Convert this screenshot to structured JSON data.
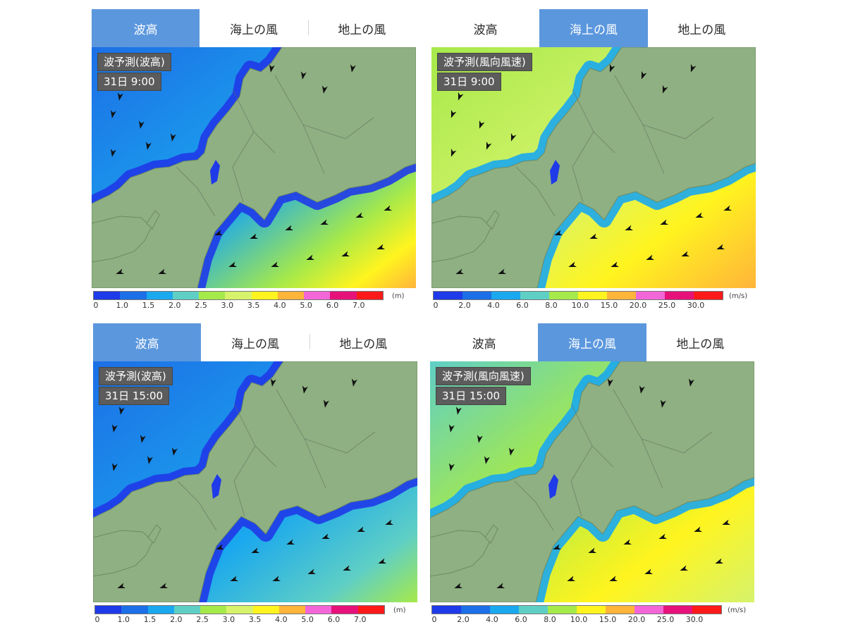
{
  "panels": [
    {
      "tabs": [
        {
          "label": "波高",
          "active": true
        },
        {
          "label": "海上の風",
          "active": false
        },
        {
          "label": "地上の風",
          "active": false
        }
      ],
      "title": "波予測(波高)",
      "time": "31日 9:00",
      "legend": {
        "colors": [
          "#1f3ae8",
          "#1c6fe6",
          "#1aa8ee",
          "#5fcfc5",
          "#a6e94a",
          "#d6f36b",
          "#fff41f",
          "#ffb43a",
          "#f266d8",
          "#e6127a",
          "#ff1a1a"
        ],
        "labels": [
          "0",
          "1.0",
          "1.5",
          "2.0",
          "2.5",
          "3.0",
          "3.5",
          "4.0",
          "5.0",
          "6.0",
          "7.0"
        ],
        "unit": "(m)"
      }
    },
    {
      "tabs": [
        {
          "label": "波高",
          "active": false
        },
        {
          "label": "海上の風",
          "active": true
        },
        {
          "label": "地上の風",
          "active": false
        }
      ],
      "title": "波予測(風向風速)",
      "time": "31日 9:00",
      "legend": {
        "colors": [
          "#1f3ae8",
          "#1c6fe6",
          "#1aa8ee",
          "#5fcfc5",
          "#a6e94a",
          "#fff41f",
          "#ffb43a",
          "#f266d8",
          "#e6127a",
          "#ff1a1a"
        ],
        "labels": [
          "0",
          "2.0",
          "4.0",
          "6.0",
          "8.0",
          "10.0",
          "15.0",
          "20.0",
          "25.0",
          "30.0"
        ],
        "unit": "(m/s)"
      }
    },
    {
      "tabs": [
        {
          "label": "波高",
          "active": true
        },
        {
          "label": "海上の風",
          "active": false
        },
        {
          "label": "地上の風",
          "active": false
        }
      ],
      "title": "波予測(波高)",
      "time": "31日 15:00",
      "legend": {
        "colors": [
          "#1f3ae8",
          "#1c6fe6",
          "#1aa8ee",
          "#5fcfc5",
          "#a6e94a",
          "#d6f36b",
          "#fff41f",
          "#ffb43a",
          "#f266d8",
          "#e6127a",
          "#ff1a1a"
        ],
        "labels": [
          "0",
          "1.0",
          "1.5",
          "2.0",
          "2.5",
          "3.0",
          "3.5",
          "4.0",
          "5.0",
          "6.0",
          "7.0"
        ],
        "unit": "(m)"
      }
    },
    {
      "tabs": [
        {
          "label": "波高",
          "active": false
        },
        {
          "label": "海上の風",
          "active": true
        },
        {
          "label": "地上の風",
          "active": false
        }
      ],
      "title": "波予測(風向風速)",
      "time": "31日 15:00",
      "legend": {
        "colors": [
          "#1f3ae8",
          "#1c6fe6",
          "#1aa8ee",
          "#5fcfc5",
          "#a6e94a",
          "#fff41f",
          "#ffb43a",
          "#f266d8",
          "#e6127a",
          "#ff1a1a"
        ],
        "labels": [
          "0",
          "2.0",
          "4.0",
          "6.0",
          "8.0",
          "10.0",
          "15.0",
          "20.0",
          "25.0",
          "30.0"
        ],
        "unit": "(m/s)"
      }
    }
  ]
}
